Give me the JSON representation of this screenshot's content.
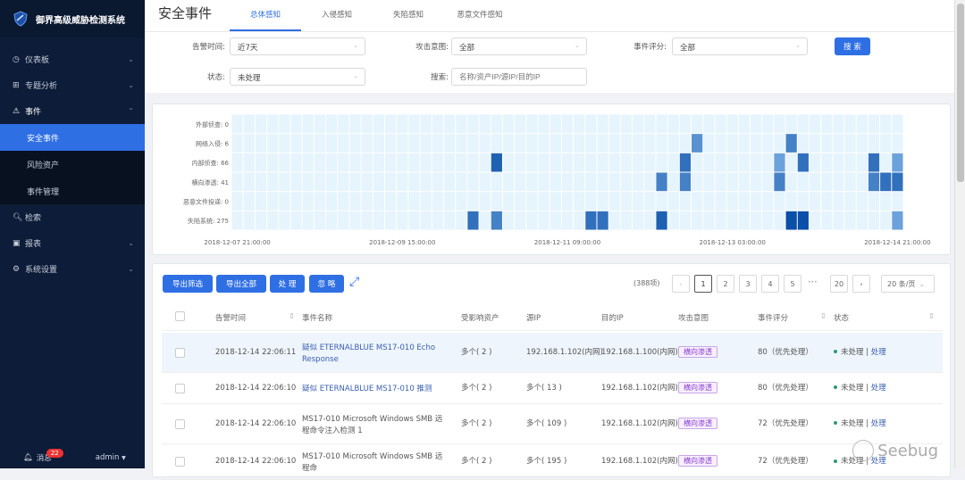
{
  "app": {
    "name": "御界高级威胁检测系统"
  },
  "sidebar": {
    "items": [
      {
        "label": "仪表板",
        "icon": "dashboard-icon"
      },
      {
        "label": "专题分析",
        "icon": "grid-icon"
      },
      {
        "label": "事件",
        "icon": "warning-icon",
        "expanded": true,
        "children": [
          {
            "label": "安全事件",
            "active": true
          },
          {
            "label": "风险资产"
          },
          {
            "label": "事件管理"
          }
        ]
      },
      {
        "label": "检索",
        "icon": "search-icon"
      },
      {
        "label": "报表",
        "icon": "report-icon"
      },
      {
        "label": "系统设置",
        "icon": "gear-icon"
      }
    ],
    "messages_label": "消息",
    "messages_count": "22",
    "user": "admin"
  },
  "header": {
    "title": "安全事件",
    "tabs": [
      {
        "label": "总体感知",
        "active": true
      },
      {
        "label": "入侵感知"
      },
      {
        "label": "失陷感知"
      },
      {
        "label": "恶意文件感知"
      }
    ]
  },
  "filters": {
    "alert_time": {
      "label": "告警时间:",
      "value": "近7天"
    },
    "attack_intent": {
      "label": "攻击意图:",
      "value": "全部"
    },
    "score": {
      "label": "事件评分:",
      "value": "全部"
    },
    "status": {
      "label": "状态:",
      "value": "未处理"
    },
    "search": {
      "label": "搜索:",
      "placeholder": "名称/资产IP/源IP/目的IP"
    },
    "search_button": "搜 索"
  },
  "chart_data": {
    "type": "heatmap",
    "categories": [
      "外部侦查: 0",
      "网络入侵: 6",
      "内部侦查: 66",
      "横向渗透: 41",
      "恶意文件投递: 0",
      "失陷系统: 275"
    ],
    "xticks": [
      "2018-12-07 21:00:00",
      "2018-12-09 15:00:00",
      "2018-12-11 09:00:00",
      "2018-12-13 03:00:00",
      "2018-12-14 21:00:00"
    ],
    "xrange": [
      "2018-12-07 21:00:00",
      "2018-12-14 21:00:00"
    ],
    "bin_hours": 3,
    "grid": true,
    "cells": [
      {
        "time": "2018-12-12 18:00",
        "category": 1,
        "value": 2
      },
      {
        "time": "2018-12-13 18:00",
        "category": 1,
        "value": 3
      },
      {
        "time": "2018-12-10 15:00",
        "category": 2,
        "value": 5
      },
      {
        "time": "2018-12-12 15:00",
        "category": 2,
        "value": 4
      },
      {
        "time": "2018-12-13 15:00",
        "category": 2,
        "value": 1
      },
      {
        "time": "2018-12-13 21:00",
        "category": 2,
        "value": 4
      },
      {
        "time": "2018-12-14 15:00",
        "category": 2,
        "value": 4
      },
      {
        "time": "2018-12-14 21:00",
        "category": 2,
        "value": 1
      },
      {
        "time": "2018-12-12 09:00",
        "category": 3,
        "value": 3
      },
      {
        "time": "2018-12-12 15:00",
        "category": 3,
        "value": 3
      },
      {
        "time": "2018-12-13 15:00",
        "category": 3,
        "value": 3
      },
      {
        "time": "2018-12-14 15:00",
        "category": 3,
        "value": 3
      },
      {
        "time": "2018-12-14 18:00",
        "category": 3,
        "value": 4
      },
      {
        "time": "2018-12-14 21:00",
        "category": 3,
        "value": 4
      },
      {
        "time": "2018-12-10 09:00",
        "category": 5,
        "value": 4
      },
      {
        "time": "2018-12-10 15:00",
        "category": 5,
        "value": 3
      },
      {
        "time": "2018-12-11 15:00",
        "category": 5,
        "value": 4
      },
      {
        "time": "2018-12-11 18:00",
        "category": 5,
        "value": 4
      },
      {
        "time": "2018-12-12 09:00",
        "category": 5,
        "value": 5
      },
      {
        "time": "2018-12-13 18:00",
        "category": 5,
        "value": 6
      },
      {
        "time": "2018-12-13 21:00",
        "category": 5,
        "value": 6
      },
      {
        "time": "2018-12-14 21:00",
        "category": 5,
        "value": 1
      }
    ]
  },
  "toolbar": {
    "export_filtered": "导出筛选",
    "export_all": "导出全部",
    "handle": "处 理",
    "ignore": "忽 略",
    "fullscreen_icon": "expand-icon"
  },
  "pagination": {
    "total": "(388项)",
    "pages": [
      "1",
      "2",
      "3",
      "4",
      "5"
    ],
    "ellipsis": "•••",
    "last": "20",
    "current": "1",
    "page_size": "20 条/页"
  },
  "table": {
    "columns": [
      "告警时间",
      "事件名称",
      "受影响资产",
      "源IP",
      "目的IP",
      "攻击意图",
      "事件评分",
      "状态"
    ],
    "rows": [
      {
        "time": "2018-12-14 22:06:11",
        "name": "疑似 ETERNALBLUE MS17-010 Echo Response",
        "name_link": true,
        "assets": "多个( 2 )",
        "src": "192.168.1.102(内网)",
        "dst": "192.168.1.100(内网)",
        "intent": "横向渗透",
        "score": "80（优先处理）",
        "status": "未处理",
        "action": "处理"
      },
      {
        "time": "2018-12-14 22:06:10",
        "name": "疑似 ETERNALBLUE MS17-010 推测",
        "name_link": true,
        "assets": "多个( 2 )",
        "src": "多个( 13 )",
        "dst": "192.168.1.102(内网)",
        "intent": "横向渗透",
        "score": "80（优先处理）",
        "status": "未处理",
        "action": "处理"
      },
      {
        "time": "2018-12-14 22:06:10",
        "name": "MS17-010 Microsoft Windows SMB 远程命令注入检测 1",
        "name_link": false,
        "assets": "多个( 2 )",
        "src": "多个( 109 )",
        "dst": "192.168.1.102(内网)",
        "intent": "横向渗透",
        "score": "72（优先处理）",
        "status": "未处理",
        "action": "处理"
      },
      {
        "time": "2018-12-14 22:06:10",
        "name": "MS17-010 Microsoft Windows SMB 远程命",
        "name_link": false,
        "assets": "多个( 2 )",
        "src": "多个( 195 )",
        "dst": "192.168.1.102(内网)",
        "intent": "横向渗透",
        "score": "72（优先处理）",
        "status": "未处理",
        "action": "处理"
      }
    ]
  },
  "watermark": "Seebug",
  "colors": {
    "sidebar": "#0d1c38",
    "accent": "#2f6fe4",
    "heat_low": "#e6f4fd",
    "heat_high": "#0a4fa8"
  }
}
